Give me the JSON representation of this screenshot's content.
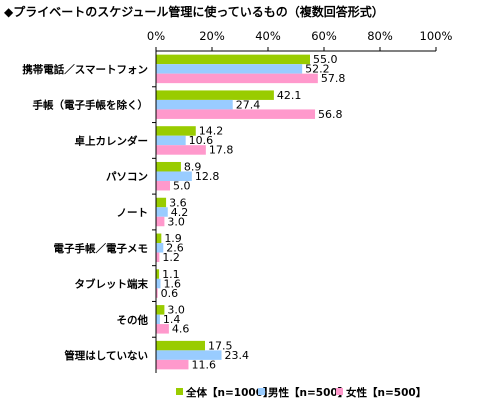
{
  "chart_data": {
    "type": "bar",
    "orientation": "horizontal",
    "title": "◆プライベートのスケジュール管理に使っているもの（複数回答形式）",
    "categories": [
      "携帯電話／スマートフォン",
      "手帳（電子手帳を除く）",
      "卓上カレンダー",
      "パソコン",
      "ノート",
      "電子手帳／電子メモ",
      "タブレット端末",
      "その他",
      "管理はしていない"
    ],
    "xlim": [
      0,
      100
    ],
    "xticks": [
      "0%",
      "20%",
      "40%",
      "60%",
      "80%",
      "100%"
    ],
    "grid": false,
    "legend_position": "bottom",
    "series": [
      {
        "name": "全体【n=1000】",
        "color": "#99cc00",
        "values": [
          55.0,
          42.1,
          14.2,
          8.9,
          3.6,
          1.9,
          1.1,
          3.0,
          17.5
        ]
      },
      {
        "name": "男性【n=500】",
        "color": "#99ccff",
        "values": [
          52.2,
          27.4,
          10.6,
          12.8,
          4.2,
          2.6,
          1.6,
          1.4,
          23.4
        ]
      },
      {
        "name": "女性【n=500】",
        "color": "#ff99cc",
        "values": [
          57.8,
          56.8,
          17.8,
          5.0,
          3.0,
          1.2,
          0.6,
          4.6,
          11.6
        ]
      }
    ]
  }
}
